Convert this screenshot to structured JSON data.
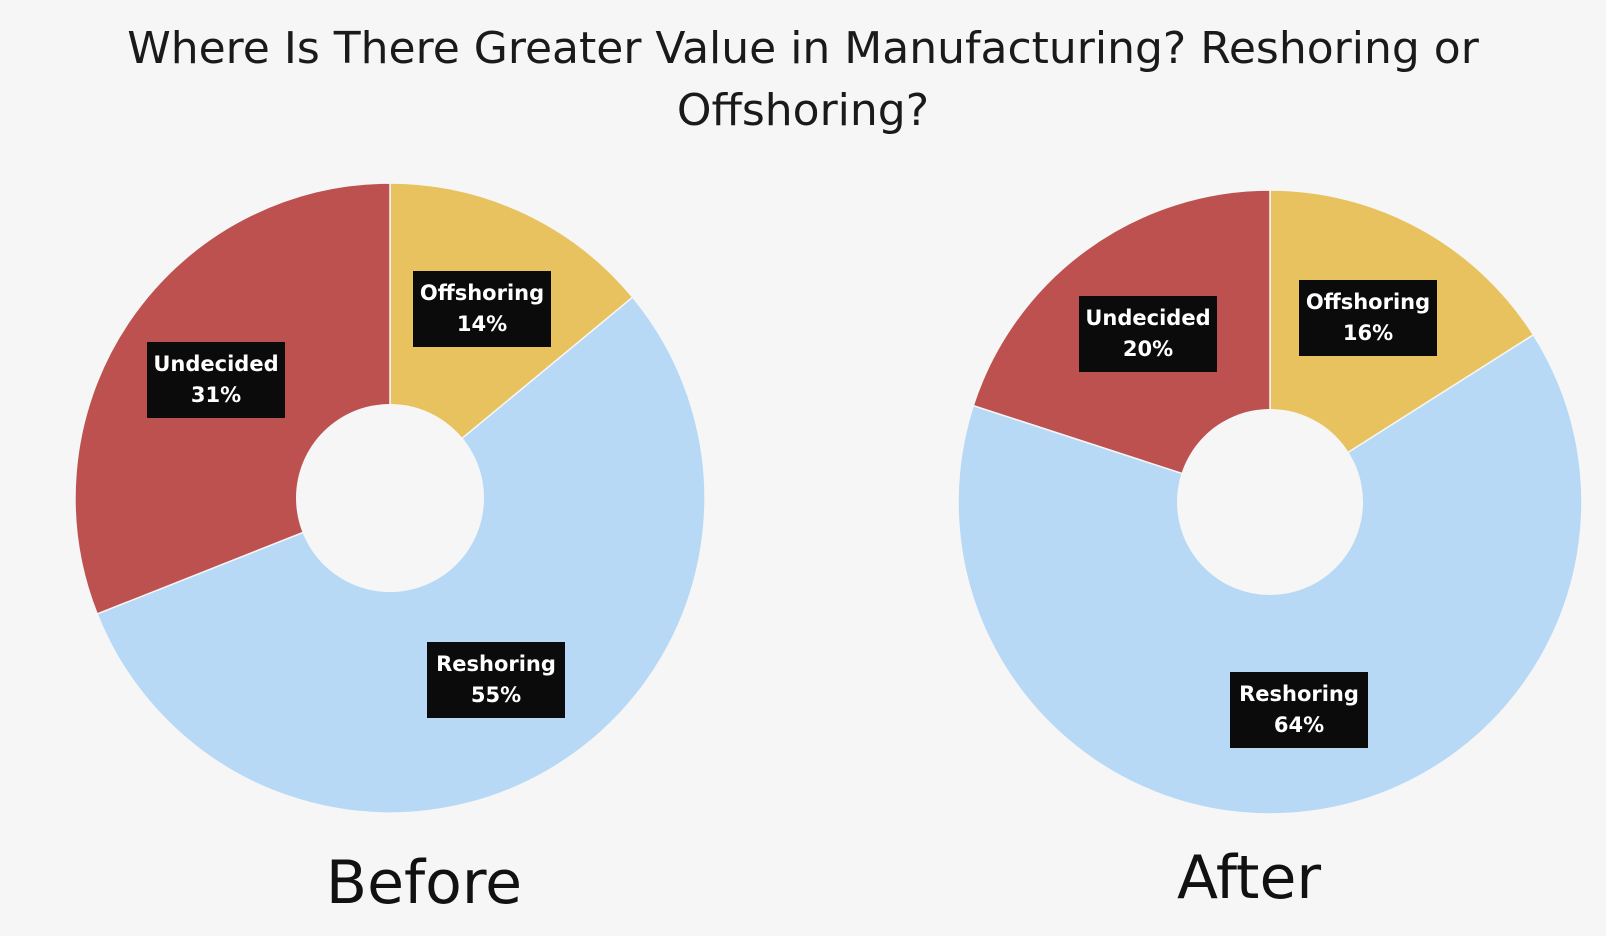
{
  "chart_data": [
    {
      "type": "pie",
      "variant": "donut",
      "title": "Where Is There Greater Value in Manufacturing? Reshoring or Offshoring?",
      "subtitle": "Before",
      "categories": [
        "Offshoring",
        "Reshoring",
        "Undecided"
      ],
      "values": [
        14,
        55,
        31
      ],
      "unit": "%",
      "colors": [
        "#E8C25E",
        "#B8D9F6",
        "#BC5150"
      ]
    },
    {
      "type": "pie",
      "variant": "donut",
      "subtitle": "After",
      "categories": [
        "Offshoring",
        "Reshoring",
        "Undecided"
      ],
      "values": [
        16,
        64,
        20
      ],
      "unit": "%",
      "colors": [
        "#E8C25E",
        "#B8D9F6",
        "#BC5150"
      ]
    }
  ],
  "title_lines": [
    "Where Is There Greater Value in Manufacturing? Reshoring or",
    "Offshoring?"
  ]
}
